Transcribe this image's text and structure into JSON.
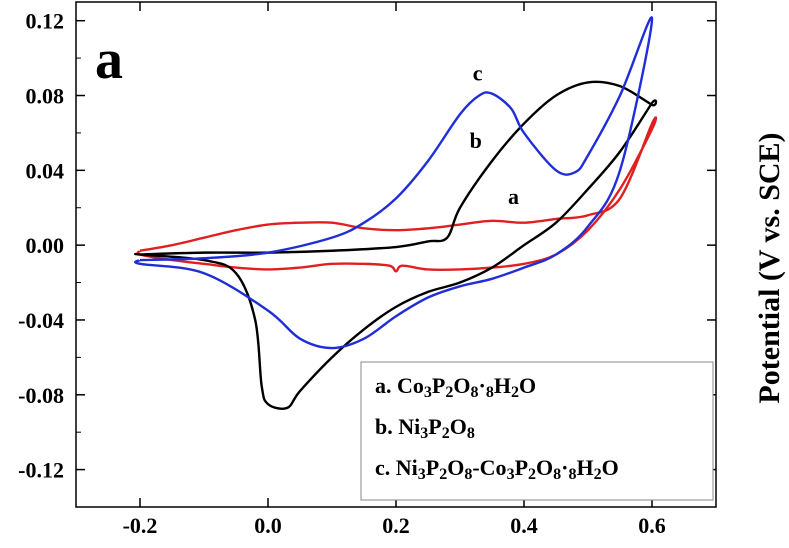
{
  "chart_data": {
    "type": "line",
    "panel_label": "a",
    "title": "",
    "xlabel": "",
    "ylabel": "Potential (V vs. SCE)",
    "xlim": [
      -0.3,
      0.7
    ],
    "ylim": [
      -0.14,
      0.13
    ],
    "x_ticks": [
      "-0.2",
      "0.0",
      "0.2",
      "0.4",
      "0.6"
    ],
    "x_tick_values": [
      -0.2,
      0.0,
      0.2,
      0.4,
      0.6
    ],
    "y_ticks": [
      "0.12",
      "0.08",
      "0.04",
      "0.00",
      "-0.04",
      "-0.08",
      "-0.12"
    ],
    "y_tick_values": [
      0.12,
      0.08,
      0.04,
      0.0,
      -0.04,
      -0.08,
      -0.12
    ],
    "grid": false,
    "legend_position": "bottom-right",
    "series": [
      {
        "name": "a. Co3P2O8·8H2O",
        "curve_label": "a",
        "color": "#e02020",
        "x": [
          -0.2,
          -0.15,
          -0.1,
          -0.05,
          0.0,
          0.05,
          0.1,
          0.15,
          0.2,
          0.25,
          0.3,
          0.35,
          0.4,
          0.45,
          0.5,
          0.55,
          0.6,
          0.6,
          0.55,
          0.5,
          0.45,
          0.4,
          0.35,
          0.3,
          0.25,
          0.21,
          0.2,
          0.19,
          0.15,
          0.1,
          0.05,
          0.0,
          -0.05,
          -0.1,
          -0.15,
          -0.2
        ],
        "y": [
          -0.003,
          0.0,
          0.004,
          0.008,
          0.011,
          0.012,
          0.012,
          0.009,
          0.008,
          0.009,
          0.011,
          0.013,
          0.012,
          0.014,
          0.016,
          0.025,
          0.065,
          0.062,
          0.03,
          0.008,
          -0.005,
          -0.01,
          -0.012,
          -0.013,
          -0.013,
          -0.011,
          -0.014,
          -0.011,
          -0.01,
          -0.01,
          -0.012,
          -0.013,
          -0.012,
          -0.01,
          -0.008,
          -0.005
        ]
      },
      {
        "name": "b. Ni3P2O8",
        "curve_label": "b",
        "color": "#000000",
        "x": [
          -0.2,
          -0.1,
          0.0,
          0.1,
          0.2,
          0.25,
          0.28,
          0.3,
          0.35,
          0.4,
          0.45,
          0.5,
          0.55,
          0.6,
          0.6,
          0.55,
          0.5,
          0.45,
          0.4,
          0.35,
          0.3,
          0.25,
          0.2,
          0.15,
          0.1,
          0.05,
          0.03,
          0.0,
          -0.01,
          -0.02,
          -0.05,
          -0.1,
          -0.2
        ],
        "y": [
          -0.005,
          -0.004,
          -0.004,
          -0.003,
          -0.001,
          0.002,
          0.004,
          0.02,
          0.045,
          0.065,
          0.08,
          0.087,
          0.085,
          0.075,
          0.076,
          0.05,
          0.03,
          0.012,
          0.0,
          -0.012,
          -0.02,
          -0.025,
          -0.033,
          -0.045,
          -0.06,
          -0.078,
          -0.087,
          -0.085,
          -0.075,
          -0.04,
          -0.015,
          -0.008,
          -0.005
        ]
      },
      {
        "name": "c. Ni3P2O8-Co3P2O8·8H2O",
        "curve_label": "c",
        "color": "#1f2ed6",
        "x": [
          -0.2,
          -0.1,
          0.0,
          0.1,
          0.15,
          0.2,
          0.25,
          0.3,
          0.33,
          0.35,
          0.38,
          0.4,
          0.45,
          0.48,
          0.5,
          0.55,
          0.6,
          0.55,
          0.5,
          0.45,
          0.4,
          0.35,
          0.3,
          0.25,
          0.2,
          0.15,
          0.1,
          0.05,
          0.0,
          -0.1,
          -0.2
        ],
        "y": [
          -0.008,
          -0.007,
          -0.004,
          0.004,
          0.012,
          0.025,
          0.045,
          0.07,
          0.08,
          0.081,
          0.073,
          0.06,
          0.04,
          0.039,
          0.048,
          0.08,
          0.121,
          0.04,
          0.01,
          -0.005,
          -0.012,
          -0.018,
          -0.022,
          -0.028,
          -0.038,
          -0.05,
          -0.055,
          -0.05,
          -0.035,
          -0.015,
          -0.01
        ]
      }
    ],
    "legend": [
      {
        "label": "a. Co3P2O8·8H2O"
      },
      {
        "label": "b. Ni3P2O8"
      },
      {
        "label": "c. Ni3P2O8-Co3P2O8·8H2O"
      }
    ]
  }
}
